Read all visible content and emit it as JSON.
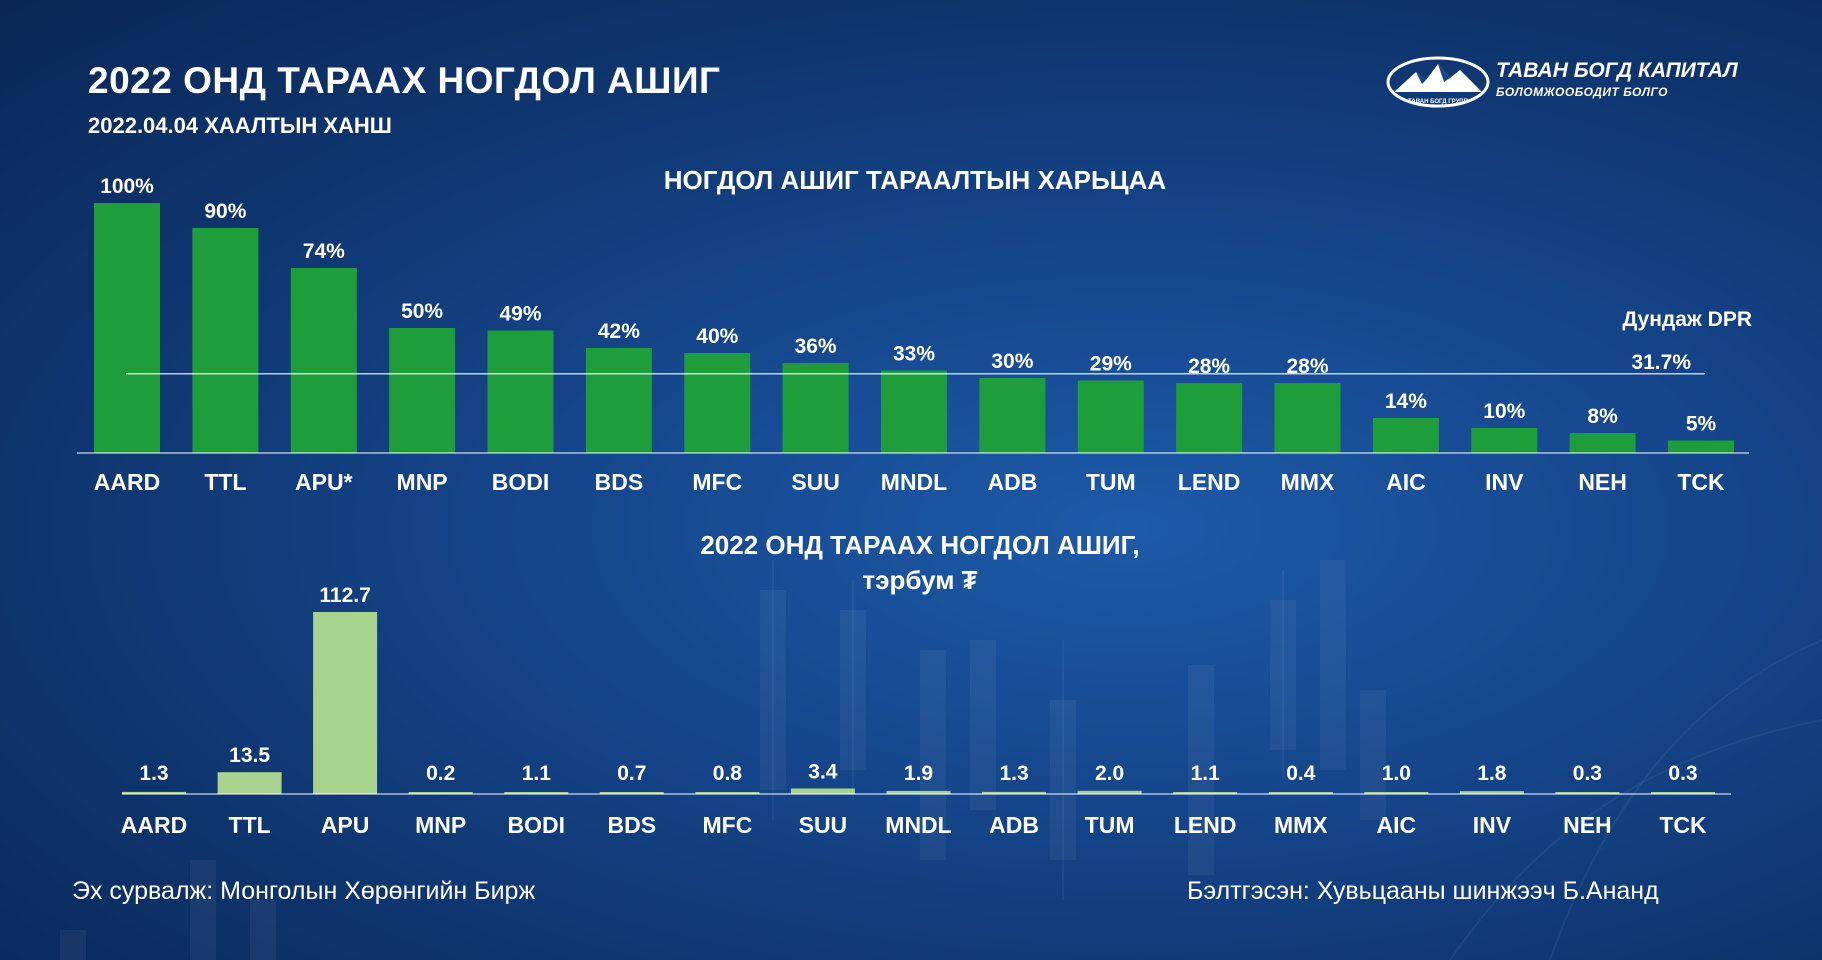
{
  "header": {
    "title": "2022 ОНД ТАРААХ НОГДОЛ АШИГ",
    "subtitle": "2022.04.04 ХААЛТЫН ХАНШ"
  },
  "logo": {
    "name": "ТАВАН БОГД КАПИТАЛ",
    "tagline": "БОЛОМЖООБОДИТ БОЛГО",
    "mark_text": "ТАВАН БОГД ГРУПП"
  },
  "colors": {
    "bar_top": "#1e9e3a",
    "bar_bottom": "#a8d38f",
    "text": "#ffffff",
    "baseline": "#ffffff"
  },
  "chart_data": [
    {
      "type": "bar",
      "title": "НОГДОЛ АШИГ ТАРААЛТЫН ХАРЬЦАА",
      "categories": [
        "AARD",
        "TTL",
        "APU*",
        "MNP",
        "BODI",
        "BDS",
        "MFC",
        "SUU",
        "MNDL",
        "ADB",
        "TUM",
        "LEND",
        "MMX",
        "AIC",
        "INV",
        "NEH",
        "TCK"
      ],
      "values": [
        100,
        90,
        74,
        50,
        49,
        42,
        40,
        36,
        33,
        30,
        29,
        28,
        28,
        14,
        10,
        8,
        5
      ],
      "value_labels": [
        "100%",
        "90%",
        "74%",
        "50%",
        "49%",
        "42%",
        "40%",
        "36%",
        "33%",
        "30%",
        "29%",
        "28%",
        "28%",
        "14%",
        "10%",
        "8%",
        "5%"
      ],
      "ylim": [
        0,
        100
      ],
      "reference_line": {
        "label": "Дундаж DPR",
        "value": 31.7,
        "value_label": "31.7%"
      },
      "grid": false,
      "legend": "none"
    },
    {
      "type": "bar",
      "title": "2022 ОНД ТАРААХ НОГДОЛ АШИГ,",
      "subtitle": "тэрбум ₮",
      "categories": [
        "AARD",
        "TTL",
        "APU",
        "MNP",
        "BODI",
        "BDS",
        "MFC",
        "SUU",
        "MNDL",
        "ADB",
        "TUM",
        "LEND",
        "MMX",
        "AIC",
        "INV",
        "NEH",
        "TCK"
      ],
      "values": [
        1.3,
        13.5,
        112.7,
        0.2,
        1.1,
        0.7,
        0.8,
        3.4,
        1.9,
        1.3,
        2.0,
        1.1,
        0.4,
        1.0,
        1.8,
        0.3,
        0.3
      ],
      "value_labels": [
        "1.3",
        "13.5",
        "112.7",
        "0.2",
        "1.1",
        "0.7",
        "0.8",
        "3.4",
        "1.9",
        "1.3",
        "2.0",
        "1.1",
        "0.4",
        "1.0",
        "1.8",
        "0.3",
        "0.3"
      ],
      "ylim": [
        0,
        112.7
      ],
      "grid": false,
      "legend": "none"
    }
  ],
  "footer": {
    "source": "Эх сурвалж: Монголын Хөрөнгийн Бирж",
    "author": "Бэлтгэсэн: Хувьцааны шинжээч Б.Ананд"
  }
}
